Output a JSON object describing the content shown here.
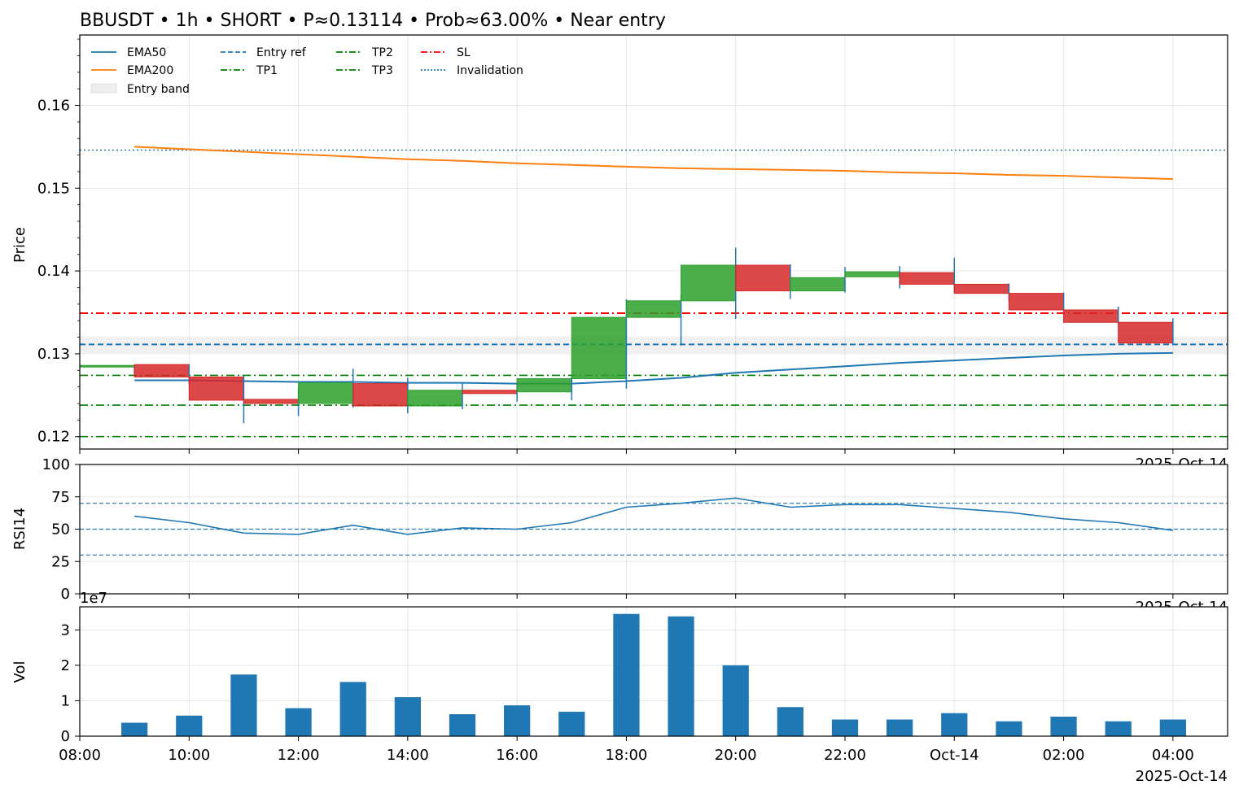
{
  "title": "BBUSDT • 1h • SHORT • P≈0.13114 • Prob≈63.00% • Near entry",
  "colors": {
    "ema50": "#1f77b4",
    "ema200": "#ff7f0e",
    "bull": "#2ca02c",
    "bear": "#d62728",
    "entry": "#1f77b4",
    "tp": "#008000",
    "sl": "#ff0000",
    "invalid": "#1f77b4",
    "vol": "#1f77b4",
    "band": "#bbbbbb"
  },
  "x_axis": {
    "ticks": [
      "08:00",
      "10:00",
      "12:00",
      "14:00",
      "16:00",
      "18:00",
      "20:00",
      "22:00",
      "Oct-14",
      "02:00",
      "04:00"
    ],
    "tick_hours": [
      8,
      10,
      12,
      14,
      16,
      18,
      20,
      22,
      24,
      26,
      28
    ],
    "date_label": "2025-Oct-14",
    "range_hours": [
      8,
      29
    ]
  },
  "chart_data": [
    {
      "type": "candlestick",
      "ylabel": "Price",
      "ylim": [
        0.1185,
        0.1685
      ],
      "yticks": [
        "0.12",
        "0.13",
        "0.14",
        "0.15",
        "0.16"
      ],
      "ytick_values": [
        0.12,
        0.13,
        0.14,
        0.15,
        0.16
      ],
      "legend": {
        "placement": "top-left",
        "entries": [
          "EMA50",
          "EMA200",
          "Entry band",
          "Entry ref",
          "TP1",
          "TP2",
          "TP3",
          "SL",
          "Invalidation"
        ]
      },
      "candles": [
        {
          "t": 9,
          "o": 0.1284,
          "c": 0.1286,
          "h": 0.1286,
          "l": 0.1273
        },
        {
          "t": 10,
          "o": 0.1287,
          "c": 0.1272,
          "h": 0.1287,
          "l": 0.1263
        },
        {
          "t": 11,
          "o": 0.1272,
          "c": 0.1244,
          "h": 0.1273,
          "l": 0.1216
        },
        {
          "t": 12,
          "o": 0.1245,
          "c": 0.124,
          "h": 0.1259,
          "l": 0.1225
        },
        {
          "t": 13,
          "o": 0.124,
          "c": 0.1265,
          "h": 0.1282,
          "l": 0.1235
        },
        {
          "t": 14,
          "o": 0.1264,
          "c": 0.1237,
          "h": 0.1271,
          "l": 0.1228
        },
        {
          "t": 15,
          "o": 0.1237,
          "c": 0.1256,
          "h": 0.1264,
          "l": 0.1233
        },
        {
          "t": 16,
          "o": 0.1256,
          "c": 0.1252,
          "h": 0.1266,
          "l": 0.1242
        },
        {
          "t": 17,
          "o": 0.1254,
          "c": 0.127,
          "h": 0.1273,
          "l": 0.1244
        },
        {
          "t": 18,
          "o": 0.127,
          "c": 0.1344,
          "h": 0.1366,
          "l": 0.1258
        },
        {
          "t": 19,
          "o": 0.1344,
          "c": 0.1364,
          "h": 0.1371,
          "l": 0.131
        },
        {
          "t": 20,
          "o": 0.1364,
          "c": 0.1407,
          "h": 0.1428,
          "l": 0.1342
        },
        {
          "t": 21,
          "o": 0.1407,
          "c": 0.1376,
          "h": 0.1408,
          "l": 0.1366
        },
        {
          "t": 22,
          "o": 0.1376,
          "c": 0.1392,
          "h": 0.1405,
          "l": 0.1374
        },
        {
          "t": 23,
          "o": 0.1393,
          "c": 0.1399,
          "h": 0.1406,
          "l": 0.1379
        },
        {
          "t": 24,
          "o": 0.1398,
          "c": 0.1384,
          "h": 0.1416,
          "l": 0.1374
        },
        {
          "t": 25,
          "o": 0.1384,
          "c": 0.1373,
          "h": 0.1385,
          "l": 0.1363
        },
        {
          "t": 26,
          "o": 0.1373,
          "c": 0.1353,
          "h": 0.1374,
          "l": 0.1348
        },
        {
          "t": 27,
          "o": 0.1353,
          "c": 0.1338,
          "h": 0.1357,
          "l": 0.1334
        },
        {
          "t": 28,
          "o": 0.1338,
          "c": 0.1313,
          "h": 0.1343,
          "l": 0.1311
        }
      ],
      "ema50": {
        "t": [
          9,
          10,
          11,
          12,
          13,
          14,
          15,
          16,
          17,
          18,
          19,
          20,
          21,
          22,
          23,
          24,
          25,
          26,
          27,
          28
        ],
        "v": [
          0.1268,
          0.1268,
          0.1267,
          0.1266,
          0.1266,
          0.1265,
          0.1265,
          0.1264,
          0.1264,
          0.1267,
          0.1271,
          0.1277,
          0.1281,
          0.1285,
          0.1289,
          0.1292,
          0.1295,
          0.1298,
          0.13,
          0.1301
        ]
      },
      "ema200": {
        "t": [
          9,
          10,
          11,
          12,
          13,
          14,
          15,
          16,
          17,
          18,
          19,
          20,
          21,
          22,
          23,
          24,
          25,
          26,
          27,
          28
        ],
        "v": [
          0.155,
          0.1547,
          0.1544,
          0.1541,
          0.1538,
          0.1535,
          0.1533,
          0.153,
          0.1528,
          0.1526,
          0.1524,
          0.1523,
          0.1522,
          0.1521,
          0.1519,
          0.1518,
          0.1516,
          0.1515,
          0.1513,
          0.1511
        ]
      },
      "levels": {
        "entry_ref": 0.13114,
        "entry_band": [
          0.1301,
          0.1321
        ],
        "tp1": 0.1274,
        "tp2": 0.1238,
        "tp3": 0.12,
        "sl": 0.1349,
        "invalidation": 0.1546
      }
    },
    {
      "type": "line",
      "ylabel": "RSI14",
      "ylim": [
        0,
        100
      ],
      "yticks": [
        "0",
        "25",
        "50",
        "75",
        "100"
      ],
      "ytick_values": [
        0,
        25,
        50,
        75,
        100
      ],
      "ref_lines": [
        70,
        50,
        30
      ],
      "t": [
        9,
        10,
        11,
        12,
        13,
        14,
        15,
        16,
        17,
        18,
        19,
        20,
        21,
        22,
        23,
        24,
        25,
        26,
        27,
        28
      ],
      "values": [
        60,
        55,
        47,
        46,
        53,
        46,
        51,
        50,
        55,
        67,
        70,
        74,
        67,
        69,
        69,
        66,
        63,
        58,
        55,
        49
      ]
    },
    {
      "type": "bar",
      "ylabel": "Vol",
      "offset_label": "1e7",
      "ylim": [
        0,
        3.65
      ],
      "yticks": [
        "0",
        "1",
        "2",
        "3"
      ],
      "ytick_values": [
        0,
        1,
        2,
        3
      ],
      "t": [
        9,
        10,
        11,
        12,
        13,
        14,
        15,
        16,
        17,
        18,
        19,
        20,
        21,
        22,
        23,
        24,
        25,
        26,
        27,
        28
      ],
      "values": [
        0.38,
        0.58,
        1.74,
        0.79,
        1.53,
        1.1,
        0.62,
        0.87,
        0.69,
        3.45,
        3.38,
        2.0,
        0.82,
        0.47,
        0.47,
        0.65,
        0.42,
        0.55,
        0.42,
        0.47
      ]
    }
  ]
}
